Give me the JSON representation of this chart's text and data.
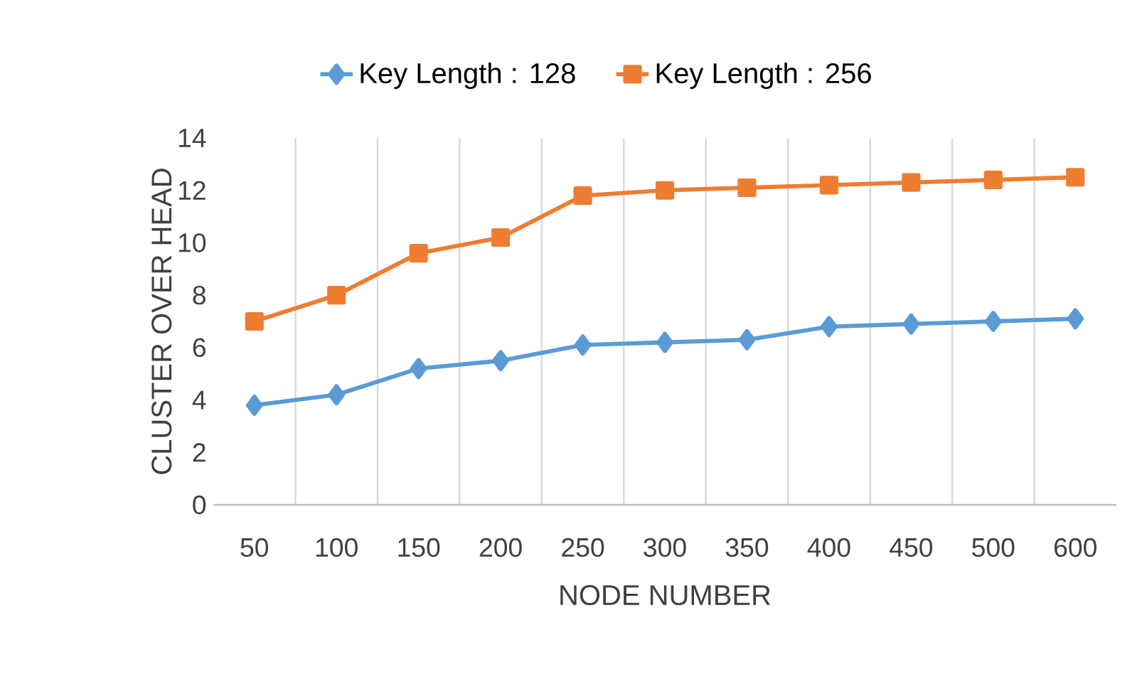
{
  "chart_data": {
    "type": "line",
    "xlabel": "NODE NUMBER",
    "ylabel": "CLUSTER OVER HEAD",
    "categories": [
      "50",
      "100",
      "150",
      "200",
      "250",
      "300",
      "350",
      "400",
      "450",
      "500",
      "600"
    ],
    "series": [
      {
        "name": "Key Length : 128",
        "color": "#5b9bd5",
        "marker": "diamond",
        "values": [
          3.8,
          4.2,
          5.2,
          5.5,
          6.1,
          6.2,
          6.3,
          6.8,
          6.9,
          7.0,
          7.1
        ]
      },
      {
        "name": "Key Length : 256",
        "color": "#ed7d31",
        "marker": "square",
        "values": [
          7.0,
          8.0,
          9.6,
          10.2,
          11.8,
          12.0,
          12.1,
          12.2,
          12.3,
          12.4,
          12.5
        ]
      }
    ],
    "ylim": [
      0,
      14
    ],
    "yticks": [
      0,
      2,
      4,
      6,
      8,
      10,
      12,
      14
    ],
    "grid": "x",
    "legend": "top",
    "line_style": "solid"
  }
}
